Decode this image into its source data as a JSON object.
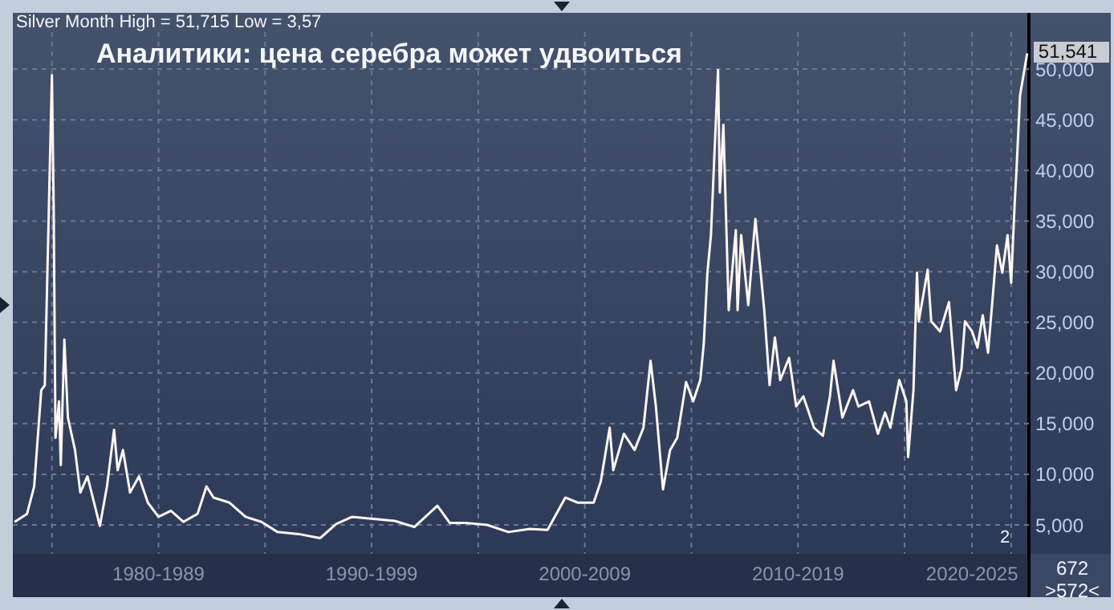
{
  "chart_data": {
    "type": "line",
    "title": "Аналитики: цена серебра может удвоиться",
    "annotations": [
      "Silver Month High = 51,715 Low = 3,57",
      {
        "text": "51,541",
        "x": "2025-10",
        "y": 51541
      },
      "2",
      "672",
      ">572<"
    ],
    "x": [
      "1978-04",
      "1978-11",
      "1979-03",
      "1979-07",
      "1979-09",
      "1980-01",
      "1980-02",
      "1980-03",
      "1980-05",
      "1980-06",
      "1980-08",
      "1980-10",
      "1981-02",
      "1981-05",
      "1981-09",
      "1981-12",
      "1982-04",
      "1982-08",
      "1982-12",
      "1983-02",
      "1983-05",
      "1983-09",
      "1984-02",
      "1984-07",
      "1985-01",
      "1985-08",
      "1986-03",
      "1986-11",
      "1987-04",
      "1987-08",
      "1988-05",
      "1989-02",
      "1989-11",
      "1990-08",
      "1991-08",
      "1992-08",
      "1993-05",
      "1994-02",
      "1995-02",
      "1996-02",
      "1997-01",
      "1998-02",
      "1998-09",
      "1999-06",
      "2000-06",
      "2001-06",
      "2002-06",
      "2003-04",
      "2004-02",
      "2004-09",
      "2005-06",
      "2005-10",
      "2006-03",
      "2006-05",
      "2006-11",
      "2007-05",
      "2007-10",
      "2008-02",
      "2008-05",
      "2008-09",
      "2009-01",
      "2009-05",
      "2009-10",
      "2010-02",
      "2010-06",
      "2010-08",
      "2010-10",
      "2010-12",
      "2011-04",
      "2011-05",
      "2011-07",
      "2011-10",
      "2012-02",
      "2012-03",
      "2012-05",
      "2012-09",
      "2013-01",
      "2013-04",
      "2013-06",
      "2013-09",
      "2013-12",
      "2014-03",
      "2014-08",
      "2014-12",
      "2015-04",
      "2015-10",
      "2016-03",
      "2016-07",
      "2016-09",
      "2017-02",
      "2017-08",
      "2017-11",
      "2018-05",
      "2018-10",
      "2019-02",
      "2019-05",
      "2019-10",
      "2020-02",
      "2020-03",
      "2020-06",
      "2020-08",
      "2020-09",
      "2021-02",
      "2021-04",
      "2021-09",
      "2022-02",
      "2022-06",
      "2022-09",
      "2022-11",
      "2023-03",
      "2023-06",
      "2023-09",
      "2023-12",
      "2024-03",
      "2024-05",
      "2024-08",
      "2024-11",
      "2025-01",
      "2025-03",
      "2025-04",
      "2025-06",
      "2025-10"
    ],
    "series": [
      {
        "color": "#fff5f0",
        "values": [
          5300,
          6100,
          8800,
          18300,
          18800,
          49400,
          36200,
          13600,
          17200,
          10900,
          23300,
          15600,
          12400,
          8200,
          9800,
          7700,
          4900,
          8800,
          14400,
          10400,
          12400,
          8200,
          9800,
          7200,
          5800,
          6400,
          5300,
          6100,
          8800,
          7700,
          7200,
          5800,
          5300,
          4300,
          4100,
          3700,
          5100,
          5800,
          5600,
          5400,
          4800,
          6900,
          5200,
          5200,
          5000,
          4300,
          4600,
          4500,
          7700,
          7200,
          7200,
          9300,
          14600,
          10400,
          14000,
          12400,
          14600,
          21200,
          16700,
          8500,
          12400,
          13600,
          19100,
          17200,
          19300,
          23000,
          29900,
          33600,
          49900,
          37800,
          44500,
          26200,
          34100,
          26200,
          33600,
          26700,
          35200,
          29900,
          26200,
          18800,
          23500,
          19300,
          21500,
          16700,
          17700,
          14600,
          13800,
          17700,
          21200,
          15600,
          18300,
          16700,
          17200,
          14000,
          16100,
          14600,
          19300,
          17200,
          11700,
          18300,
          29900,
          25100,
          30200,
          25100,
          24100,
          27000,
          18300,
          20400,
          25100,
          24100,
          22500,
          25700,
          22000,
          28300,
          32600,
          29900,
          33600,
          28900,
          36800,
          40000,
          47400,
          51541
        ]
      }
    ],
    "xlim": [
      "1978-03",
      "2025-11"
    ],
    "xticks": [
      {
        "value": "1980",
        "label": null
      },
      {
        "value": "1985",
        "label": "1980-1989"
      },
      {
        "value": "1990",
        "label": null
      },
      {
        "value": "1995",
        "label": "1990-1999"
      },
      {
        "value": "2000",
        "label": null
      },
      {
        "value": "2005",
        "label": "2000-2009"
      },
      {
        "value": "2010",
        "label": null
      },
      {
        "value": "2015",
        "label": "2010-2019"
      },
      {
        "value": "2020",
        "label": null
      },
      {
        "value": "2023-03",
        "label": "2020-2025"
      },
      {
        "value": "2025",
        "label": null
      }
    ],
    "ylim": [
      2150,
      53650
    ],
    "yticks": [
      {
        "value": 5000,
        "label": "5,000"
      },
      {
        "value": 10000,
        "label": "10,000"
      },
      {
        "value": 15000,
        "label": "15,000"
      },
      {
        "value": 20000,
        "label": "20,000"
      },
      {
        "value": 25000,
        "label": "25,000"
      },
      {
        "value": 30000,
        "label": "30,000"
      },
      {
        "value": 35000,
        "label": "35,000"
      },
      {
        "value": 40000,
        "label": "40,000"
      },
      {
        "value": 45000,
        "label": "45,000"
      },
      {
        "value": 50000,
        "label": "50,000"
      }
    ],
    "grid": true,
    "legend": false,
    "marker": "none",
    "line_style": "solid"
  }
}
